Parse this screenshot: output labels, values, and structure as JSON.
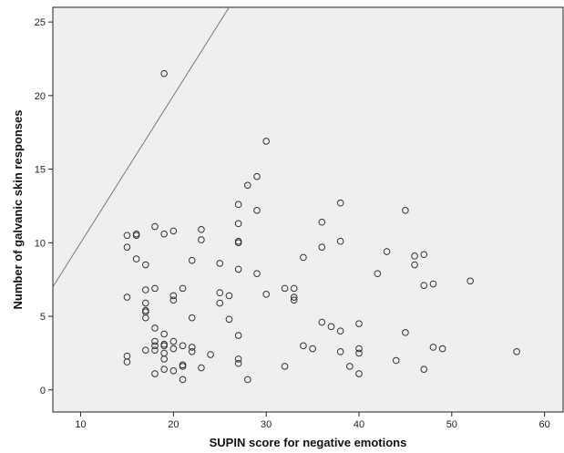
{
  "colors": {
    "plot_background": "#efefef",
    "axis": "#222222",
    "marker_stroke": "#333333",
    "reference_line": "#777777"
  },
  "chart_data": {
    "type": "scatter",
    "title": "",
    "xlabel": "SUPIN score for negative emotions",
    "ylabel": "Number of galvanic skin responses",
    "xlim": [
      7,
      62
    ],
    "ylim": [
      -1.5,
      26
    ],
    "x_ticks": [
      10,
      20,
      30,
      40,
      50,
      60
    ],
    "y_ticks": [
      0,
      5,
      10,
      15,
      20,
      25
    ],
    "grid": false,
    "legend": "none",
    "marker": "open-circle",
    "reference_line": {
      "description": "identity line y = x",
      "from": [
        7,
        7
      ],
      "to": [
        62,
        62
      ]
    },
    "series": [
      {
        "points": [
          [
            15,
            10.5
          ],
          [
            15,
            9.7
          ],
          [
            15,
            6.3
          ],
          [
            15,
            2.3
          ],
          [
            15,
            1.9
          ],
          [
            16,
            10.6
          ],
          [
            16,
            10.5
          ],
          [
            16,
            8.9
          ],
          [
            17,
            8.5
          ],
          [
            17,
            6.8
          ],
          [
            17,
            5.9
          ],
          [
            17,
            5.4
          ],
          [
            17,
            5.3
          ],
          [
            17,
            4.9
          ],
          [
            17,
            2.7
          ],
          [
            18,
            11.1
          ],
          [
            18,
            6.9
          ],
          [
            18,
            4.2
          ],
          [
            18,
            3.3
          ],
          [
            18,
            3.0
          ],
          [
            18,
            2.7
          ],
          [
            18,
            1.1
          ],
          [
            19,
            21.5
          ],
          [
            19,
            10.6
          ],
          [
            19,
            3.8
          ],
          [
            19,
            3.1
          ],
          [
            19,
            3.0
          ],
          [
            19,
            2.5
          ],
          [
            19,
            2.1
          ],
          [
            19,
            1.4
          ],
          [
            20,
            10.8
          ],
          [
            20,
            6.4
          ],
          [
            20,
            6.1
          ],
          [
            20,
            3.3
          ],
          [
            20,
            2.8
          ],
          [
            20,
            1.3
          ],
          [
            21,
            6.9
          ],
          [
            21,
            3.0
          ],
          [
            21,
            1.7
          ],
          [
            21,
            1.6
          ],
          [
            21,
            0.7
          ],
          [
            22,
            8.8
          ],
          [
            22,
            4.9
          ],
          [
            22,
            2.9
          ],
          [
            22,
            2.6
          ],
          [
            23,
            10.9
          ],
          [
            23,
            10.2
          ],
          [
            23,
            1.5
          ],
          [
            24,
            2.4
          ],
          [
            25,
            8.6
          ],
          [
            25,
            6.6
          ],
          [
            25,
            5.9
          ],
          [
            26,
            6.4
          ],
          [
            26,
            4.8
          ],
          [
            27,
            12.6
          ],
          [
            27,
            11.3
          ],
          [
            27,
            10.1
          ],
          [
            27,
            10.0
          ],
          [
            27,
            8.2
          ],
          [
            27,
            3.7
          ],
          [
            27,
            2.1
          ],
          [
            27,
            1.8
          ],
          [
            28,
            13.9
          ],
          [
            28,
            0.7
          ],
          [
            29,
            14.5
          ],
          [
            29,
            12.2
          ],
          [
            29,
            7.9
          ],
          [
            30,
            16.9
          ],
          [
            30,
            6.5
          ],
          [
            32,
            6.9
          ],
          [
            32,
            1.6
          ],
          [
            33,
            6.9
          ],
          [
            33,
            6.3
          ],
          [
            33,
            6.1
          ],
          [
            34,
            9.0
          ],
          [
            34,
            3.0
          ],
          [
            35,
            2.8
          ],
          [
            36,
            11.4
          ],
          [
            36,
            9.7
          ],
          [
            36,
            4.6
          ],
          [
            37,
            4.3
          ],
          [
            38,
            12.7
          ],
          [
            38,
            10.1
          ],
          [
            38,
            4.0
          ],
          [
            38,
            2.6
          ],
          [
            39,
            1.6
          ],
          [
            40,
            4.5
          ],
          [
            40,
            2.8
          ],
          [
            40,
            2.5
          ],
          [
            40,
            1.1
          ],
          [
            42,
            7.9
          ],
          [
            43,
            9.4
          ],
          [
            44,
            2.0
          ],
          [
            45,
            12.2
          ],
          [
            45,
            3.9
          ],
          [
            46,
            9.1
          ],
          [
            46,
            8.5
          ],
          [
            47,
            9.2
          ],
          [
            47,
            7.1
          ],
          [
            47,
            1.4
          ],
          [
            48,
            7.2
          ],
          [
            48,
            2.9
          ],
          [
            49,
            2.8
          ],
          [
            52,
            7.4
          ],
          [
            57,
            2.6
          ]
        ]
      }
    ]
  }
}
